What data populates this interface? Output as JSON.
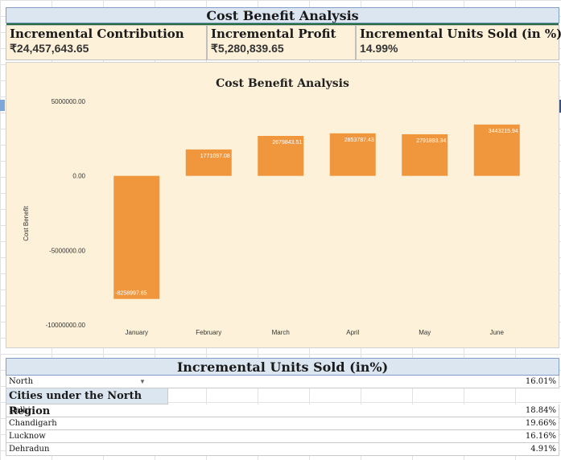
{
  "header": {
    "title": "Cost Benefit Analysis"
  },
  "kpis": [
    {
      "label": "Incremental Contribution",
      "value": "₹24,457,643.65"
    },
    {
      "label": "Incremental Profit",
      "value": "₹5,280,839.65"
    },
    {
      "label": "Incremental Units Sold (in %)",
      "value": "14.99%"
    }
  ],
  "chart_data": {
    "type": "bar",
    "title": "Cost Benefit Analysis",
    "xlabel": "",
    "ylabel": "Cost Benefit",
    "categories": [
      "January",
      "February",
      "March",
      "April",
      "May",
      "June"
    ],
    "values": [
      -8258997.65,
      1771097.08,
      2679843.51,
      2853787.43,
      2791893.34,
      3443215.94
    ],
    "data_labels": [
      "-8258997.65",
      "1771097.08",
      "2679843.51",
      "2853787.43",
      "2791893.34",
      "3443215.94"
    ],
    "ylim": [
      -10000000,
      5000000
    ],
    "yticks": [
      5000000,
      0,
      -5000000,
      -10000000
    ],
    "ytick_labels": [
      "5000000.00",
      "0.00",
      "-5000000.00",
      "-10000000.00"
    ],
    "bar_color": "#f0963c",
    "background": "#fdf2d9",
    "grid": false,
    "legend": "none"
  },
  "units": {
    "title": "Incremental Units Sold (in%)",
    "selector": {
      "region": "North",
      "value": "16.01%"
    },
    "region_heading": "Cities under the North Region",
    "cities": [
      {
        "name": "Delhi",
        "value": "18.84%"
      },
      {
        "name": "Chandigarh",
        "value": "19.66%"
      },
      {
        "name": "Lucknow",
        "value": "16.16%"
      },
      {
        "name": "Dehradun",
        "value": "4.91%"
      }
    ]
  }
}
